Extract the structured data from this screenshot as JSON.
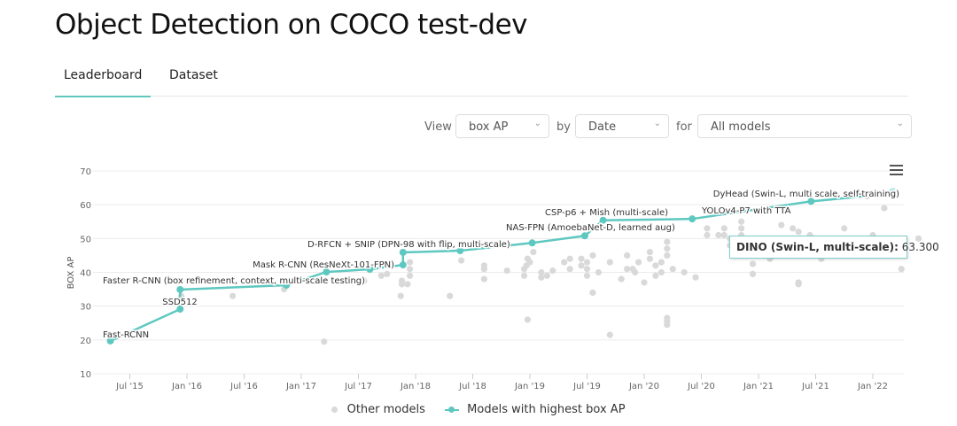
{
  "page_title": "Object Detection on COCO test-dev",
  "tabs": [
    {
      "label": "Leaderboard",
      "active": true
    },
    {
      "label": "Dataset",
      "active": false
    }
  ],
  "controls": {
    "view_label": "View",
    "view_value": "box AP",
    "by_label": "by",
    "by_value": "Date",
    "for_label": "for",
    "for_value": "All models"
  },
  "tooltip": {
    "name": "DINO (Swin-L, multi-scale):",
    "value": "63.300"
  },
  "colors": {
    "accent": "#5ec8c0",
    "other": "#d9d9d9",
    "grid": "#ececec"
  },
  "chart_data": {
    "type": "scatter",
    "ylabel": "BOX AP",
    "xlabel": "",
    "ylim": [
      10,
      70
    ],
    "yticks": [
      10,
      20,
      30,
      40,
      50,
      60,
      70
    ],
    "xlim": [
      2015.2,
      2022.6
    ],
    "xticks": [
      {
        "t": 2015.5,
        "label": "Jul '15"
      },
      {
        "t": 2016.0,
        "label": "Jan '16"
      },
      {
        "t": 2016.5,
        "label": "Jul '16"
      },
      {
        "t": 2017.0,
        "label": "Jan '17"
      },
      {
        "t": 2017.5,
        "label": "Jul '17"
      },
      {
        "t": 2018.0,
        "label": "Jan '18"
      },
      {
        "t": 2018.5,
        "label": "Jul '18"
      },
      {
        "t": 2019.0,
        "label": "Jan '19"
      },
      {
        "t": 2019.5,
        "label": "Jul '19"
      },
      {
        "t": 2020.0,
        "label": "Jan '20"
      },
      {
        "t": 2020.5,
        "label": "Jul '20"
      },
      {
        "t": 2021.0,
        "label": "Jan '21"
      },
      {
        "t": 2021.5,
        "label": "Jul '21"
      },
      {
        "t": 2022.0,
        "label": "Jan '22"
      }
    ],
    "legend": [
      {
        "name": "Other models"
      },
      {
        "name": "Models with highest box AP"
      }
    ],
    "legend_position": "bottom",
    "best": [
      {
        "t": 2015.33,
        "y": 19.7,
        "label": "Fast-RCNN"
      },
      {
        "t": 2015.94,
        "y": 29.1,
        "label": "SSD512"
      },
      {
        "t": 2015.94,
        "y": 34.9,
        "label": "Faster R-CNN (box refinement, context, multi-scale testing)"
      },
      {
        "t": 2016.87,
        "y": 36.2,
        "label": ""
      },
      {
        "t": 2017.22,
        "y": 40.1,
        "label": ""
      },
      {
        "t": 2017.6,
        "y": 40.9,
        "label": ""
      },
      {
        "t": 2017.89,
        "y": 42.2,
        "label": "Mask R-CNN (ResNeXt-101-FPN)"
      },
      {
        "t": 2017.89,
        "y": 45.9,
        "label": "D-RFCN + SNIP (DPN-98 with flip, multi-scale)"
      },
      {
        "t": 2018.39,
        "y": 46.4,
        "label": ""
      },
      {
        "t": 2019.02,
        "y": 48.7,
        "label": ""
      },
      {
        "t": 2019.48,
        "y": 50.8,
        "label": "NAS-FPN (AmoebaNet-D, learned aug)"
      },
      {
        "t": 2019.64,
        "y": 55.4,
        "label": "CSP-p6 + Mish (multi-scale)"
      },
      {
        "t": 2020.42,
        "y": 55.8,
        "label": "YOLOv4-P7 with TTA"
      },
      {
        "t": 2021.46,
        "y": 61.0,
        "label": "DyHead (Swin-L, multi scale, self-training)"
      },
      {
        "t": 2022.18,
        "y": 63.3,
        "label": ""
      }
    ],
    "others": [
      [
        2015.95,
        33
      ],
      [
        2016.4,
        33
      ],
      [
        2016.85,
        35
      ],
      [
        2017.2,
        19.5
      ],
      [
        2017.55,
        37.5
      ],
      [
        2017.7,
        39
      ],
      [
        2017.75,
        39.5
      ],
      [
        2017.87,
        33
      ],
      [
        2017.88,
        36.5
      ],
      [
        2017.88,
        37.5
      ],
      [
        2017.93,
        36.5
      ],
      [
        2017.95,
        39
      ],
      [
        2017.95,
        41
      ],
      [
        2017.95,
        43
      ],
      [
        2018.3,
        33
      ],
      [
        2018.4,
        43.5
      ],
      [
        2018.6,
        38
      ],
      [
        2018.6,
        41
      ],
      [
        2018.6,
        42
      ],
      [
        2018.8,
        40.5
      ],
      [
        2018.98,
        26
      ],
      [
        2018.95,
        39
      ],
      [
        2018.95,
        41
      ],
      [
        2018.97,
        42
      ],
      [
        2018.98,
        44
      ],
      [
        2019.03,
        46
      ],
      [
        2019.0,
        43
      ],
      [
        2019.1,
        38.5
      ],
      [
        2019.1,
        40
      ],
      [
        2019.15,
        39
      ],
      [
        2019.2,
        40.5
      ],
      [
        2019.3,
        43
      ],
      [
        2019.35,
        41
      ],
      [
        2019.35,
        44
      ],
      [
        2019.45,
        42
      ],
      [
        2019.45,
        44
      ],
      [
        2019.5,
        39
      ],
      [
        2019.5,
        41
      ],
      [
        2019.5,
        43
      ],
      [
        2019.55,
        45
      ],
      [
        2019.6,
        40
      ],
      [
        2019.55,
        34
      ],
      [
        2019.7,
        43
      ],
      [
        2019.8,
        38
      ],
      [
        2019.85,
        45
      ],
      [
        2019.9,
        41
      ],
      [
        2019.95,
        43
      ],
      [
        2020.0,
        37
      ],
      [
        2019.7,
        21.5
      ],
      [
        2019.85,
        41
      ],
      [
        2019.92,
        40
      ],
      [
        2020.05,
        44
      ],
      [
        2020.05,
        46
      ],
      [
        2020.1,
        42
      ],
      [
        2020.1,
        39
      ],
      [
        2020.15,
        40
      ],
      [
        2020.2,
        24.5
      ],
      [
        2020.2,
        25.5
      ],
      [
        2020.2,
        26.5
      ],
      [
        2020.15,
        43
      ],
      [
        2020.2,
        45
      ],
      [
        2020.2,
        47
      ],
      [
        2020.2,
        49
      ],
      [
        2020.25,
        41
      ],
      [
        2020.35,
        40
      ],
      [
        2020.45,
        38.5
      ],
      [
        2020.55,
        51
      ],
      [
        2020.55,
        53
      ],
      [
        2020.65,
        51
      ],
      [
        2020.7,
        53
      ],
      [
        2020.7,
        51
      ],
      [
        2020.75,
        50
      ],
      [
        2020.75,
        48
      ],
      [
        2020.82,
        47
      ],
      [
        2020.85,
        51
      ],
      [
        2020.85,
        53
      ],
      [
        2020.85,
        55
      ],
      [
        2020.95,
        42.5
      ],
      [
        2020.95,
        46
      ],
      [
        2021.05,
        47
      ],
      [
        2021.1,
        44
      ],
      [
        2020.95,
        39.5
      ],
      [
        2021.3,
        48
      ],
      [
        2021.3,
        50
      ],
      [
        2021.35,
        52
      ],
      [
        2021.5,
        50
      ],
      [
        2021.55,
        44
      ],
      [
        2021.35,
        36.5
      ],
      [
        2021.35,
        37
      ],
      [
        2021.4,
        46
      ],
      [
        2021.45,
        51
      ],
      [
        2021.9,
        48
      ],
      [
        2021.95,
        50
      ],
      [
        2022.0,
        51
      ],
      [
        2022.25,
        41
      ],
      [
        2022.4,
        50
      ],
      [
        2021.75,
        53
      ],
      [
        2022.1,
        59
      ],
      [
        2021.2,
        54
      ],
      [
        2021.3,
        53
      ],
      [
        2021.95,
        62.5
      ]
    ]
  }
}
